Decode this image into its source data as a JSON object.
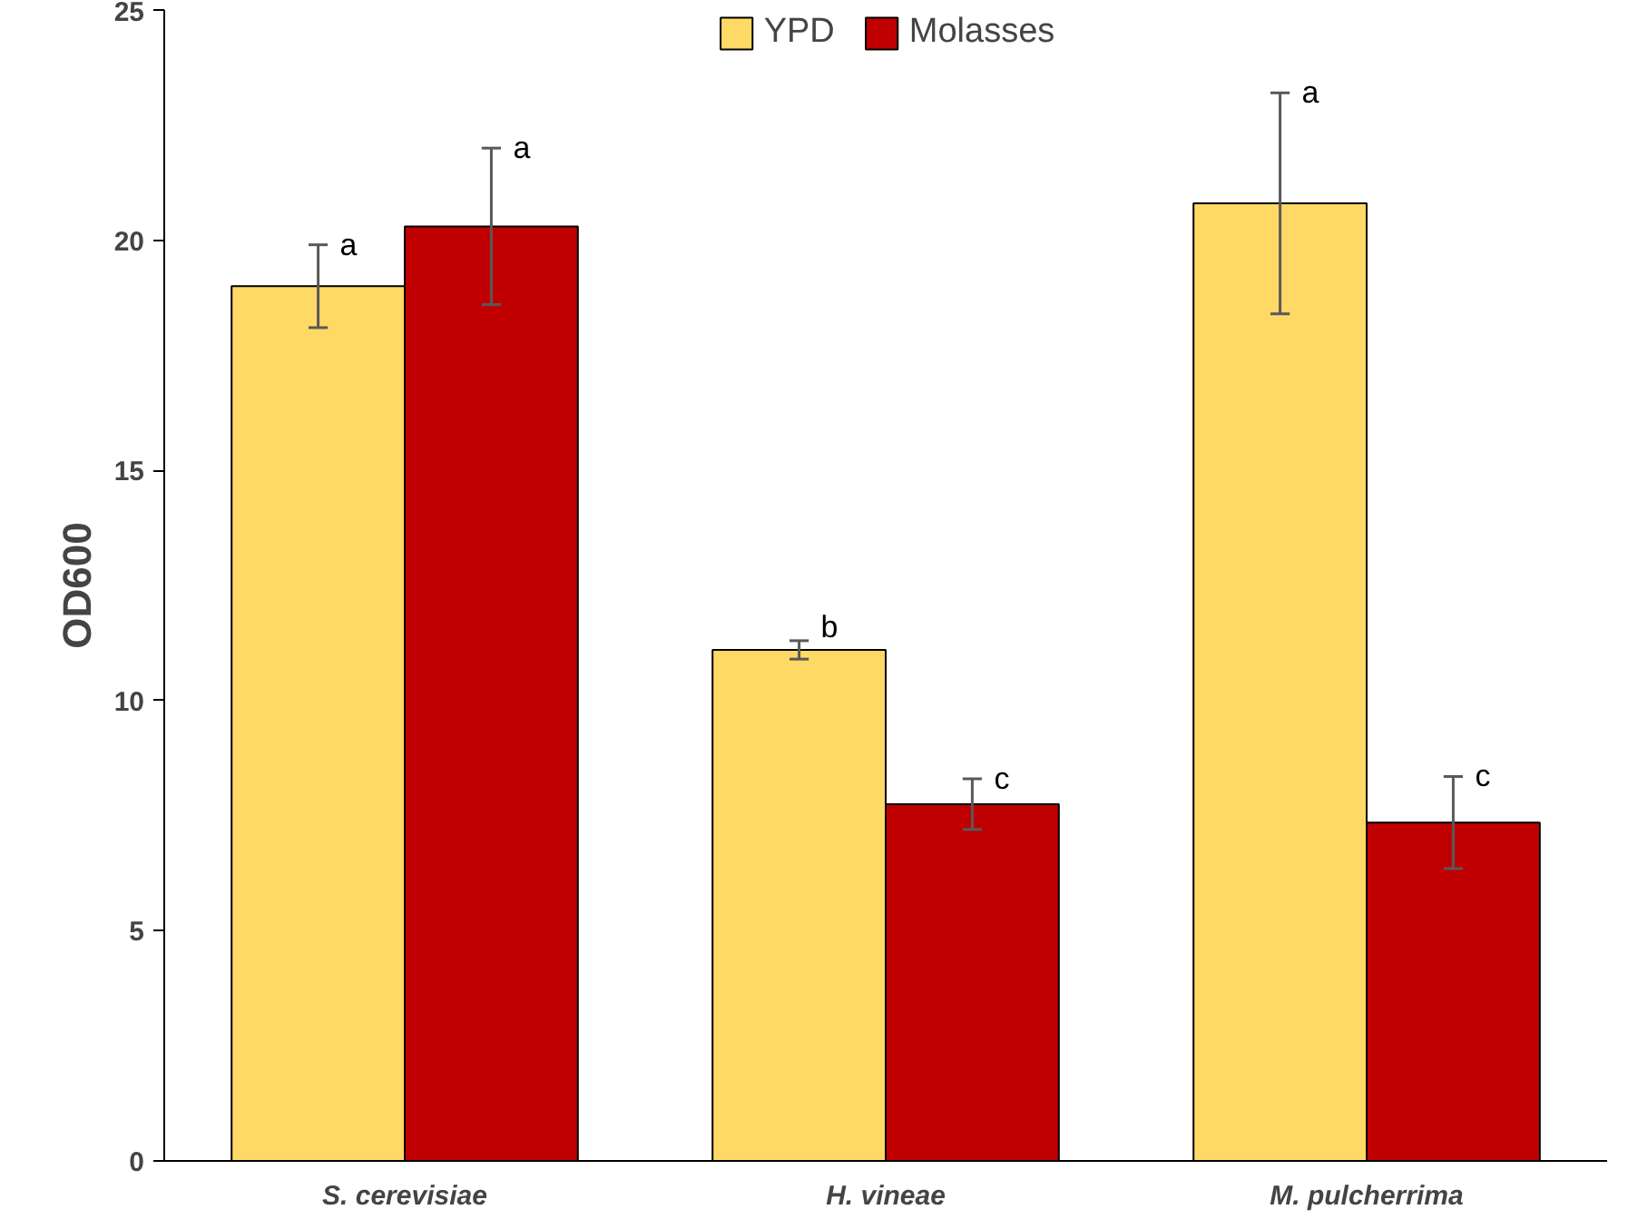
{
  "chart_data": {
    "type": "bar",
    "ylabel": "OD600",
    "categories": [
      "S. cerevisiae",
      "H. vineae",
      "M. pulcherrima"
    ],
    "series": [
      {
        "name": "YPD",
        "color": "#ffd966",
        "values": [
          19.0,
          11.1,
          20.8
        ],
        "errors": [
          0.9,
          0.2,
          2.4
        ],
        "value_labels": [
          "a",
          "b",
          "a"
        ]
      },
      {
        "name": "Molasses",
        "color": "#c00000",
        "values": [
          20.3,
          7.75,
          7.35
        ],
        "errors": [
          1.7,
          0.55,
          1.0
        ],
        "value_labels": [
          "a",
          "c",
          "c"
        ]
      }
    ],
    "ylim": [
      0,
      25
    ],
    "yticks": [
      0,
      5,
      10,
      15,
      20,
      25
    ],
    "grid": false,
    "legend": "top"
  }
}
